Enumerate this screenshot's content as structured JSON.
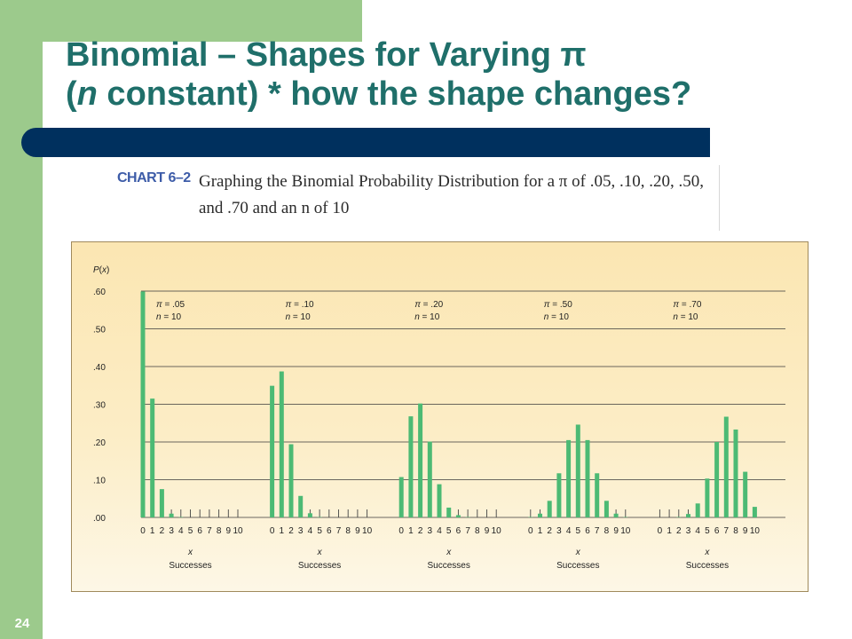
{
  "slide": {
    "title_line1": "Binomial – Shapes for Varying π",
    "title_line2_italic": "n",
    "title_line2_rest": " constant) * how the shape changes?",
    "title_open_paren": "(",
    "page_number": "24"
  },
  "caption": {
    "label": "CHART 6–2",
    "line1": "Graphing the Binomial Probability Distribution for a π of .05, .10, .20, .50,",
    "line2": "and .70 and an n of 10"
  },
  "colors": {
    "bar": "#4cba74",
    "grid": "#3a3a3a",
    "title": "#1f6f6a",
    "band_green": "#9cca8c",
    "band_navy": "#00305e"
  },
  "chart_data": {
    "type": "bar",
    "ylabel": "P(x)",
    "ylim": [
      0,
      0.6
    ],
    "yticks": [
      ".00",
      ".10",
      ".20",
      ".30",
      ".40",
      ".50",
      ".60"
    ],
    "grid": true,
    "x": [
      0,
      1,
      2,
      3,
      4,
      5,
      6,
      7,
      8,
      9,
      10
    ],
    "panels": [
      {
        "label_pi": "π = .05",
        "label_n": "n = 10",
        "xlabel_var": "x",
        "xlabel": "Successes",
        "values": [
          0.599,
          0.315,
          0.075,
          0.01,
          0.001,
          0,
          0,
          0,
          0,
          0,
          0
        ]
      },
      {
        "label_pi": "π = .10",
        "label_n": "n = 10",
        "xlabel_var": "x",
        "xlabel": "Successes",
        "values": [
          0.349,
          0.387,
          0.194,
          0.057,
          0.011,
          0.001,
          0,
          0,
          0,
          0,
          0
        ]
      },
      {
        "label_pi": "π = .20",
        "label_n": "n = 10",
        "xlabel_var": "x",
        "xlabel": "Successes",
        "values": [
          0.107,
          0.268,
          0.302,
          0.201,
          0.088,
          0.026,
          0.006,
          0.001,
          0,
          0,
          0
        ]
      },
      {
        "label_pi": "π = .50",
        "label_n": "n = 10",
        "xlabel_var": "x",
        "xlabel": "Successes",
        "values": [
          0.001,
          0.01,
          0.044,
          0.117,
          0.205,
          0.246,
          0.205,
          0.117,
          0.044,
          0.01,
          0.001
        ]
      },
      {
        "label_pi": "π = .70",
        "label_n": "n = 10",
        "xlabel_var": "x",
        "xlabel": "Successes",
        "values": [
          0,
          0,
          0.001,
          0.009,
          0.037,
          0.103,
          0.2,
          0.267,
          0.233,
          0.121,
          0.028
        ]
      }
    ]
  }
}
